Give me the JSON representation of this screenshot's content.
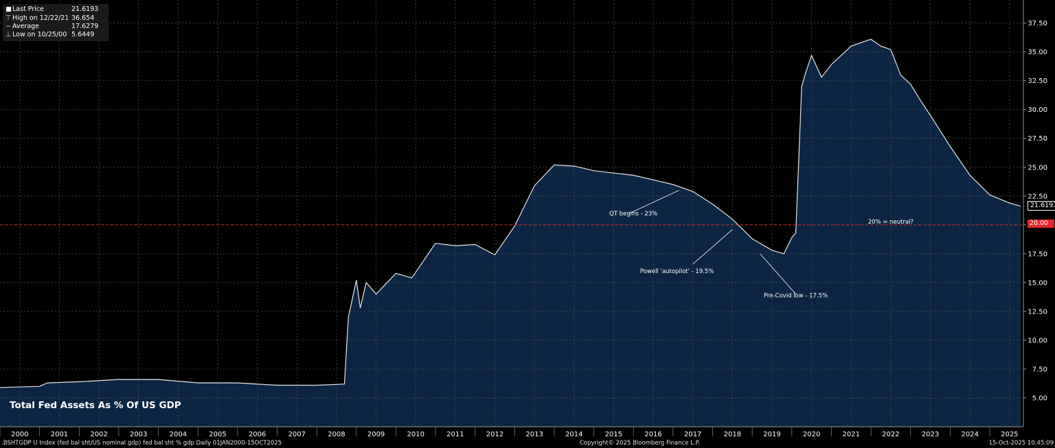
{
  "legend": {
    "last_label": "Last Price",
    "last_value": "21.6193",
    "high_label": "High on 12/22/21",
    "high_value": "36.654",
    "avg_label": "Average",
    "avg_value": "17.6279",
    "low_label": "Low on 10/25/00",
    "low_value": "5.6449"
  },
  "chart_title": "Total Fed Assets As % Of US GDP",
  "footer": {
    "left": ".BSHTGDP U Index (fed bal sht/US nominal gdp) fed bal sht % gdp Daily 01JAN2000-15OCT2025",
    "center": "Copyright© 2025 Bloomberg Finance L.P.",
    "right": "15-Oct-2025 10:45:09"
  },
  "last_price_chip": "21.6193",
  "threshold_chip": "20.00",
  "colors": {
    "area": "#0c2544",
    "line": "#e8e8e8",
    "threshold": "#e0262b",
    "grid": "#555555"
  },
  "chart_data": {
    "type": "area",
    "x": [
      2000.0,
      2001.0,
      2001.2,
      2002.0,
      2003.0,
      2004.0,
      2005.0,
      2006.0,
      2007.0,
      2008.0,
      2008.7,
      2008.8,
      2009.0,
      2009.1,
      2009.25,
      2009.5,
      2010.0,
      2010.4,
      2011.0,
      2011.5,
      2012.0,
      2012.5,
      2013.0,
      2013.5,
      2014.0,
      2014.5,
      2015.0,
      2015.5,
      2016.0,
      2016.5,
      2017.0,
      2017.5,
      2018.0,
      2018.5,
      2019.0,
      2019.5,
      2019.8,
      2020.0,
      2020.1,
      2020.25,
      2020.35,
      2020.5,
      2020.75,
      2021.0,
      2021.5,
      2022.0,
      2022.25,
      2022.5,
      2022.75,
      2023.0,
      2023.25,
      2023.5,
      2024.0,
      2024.5,
      2025.0,
      2025.5,
      2025.78
    ],
    "y": [
      5.9,
      6.0,
      6.3,
      6.4,
      6.6,
      6.6,
      6.3,
      6.3,
      6.1,
      6.1,
      6.2,
      12.0,
      15.2,
      12.8,
      15.0,
      14.0,
      15.8,
      15.4,
      18.4,
      18.2,
      18.3,
      17.4,
      19.9,
      23.4,
      25.2,
      25.1,
      24.7,
      24.5,
      24.3,
      23.9,
      23.5,
      22.9,
      21.8,
      20.5,
      18.8,
      17.8,
      17.5,
      18.9,
      19.3,
      32.0,
      33.2,
      34.7,
      32.8,
      33.9,
      35.5,
      36.1,
      35.5,
      35.2,
      33.0,
      32.2,
      30.8,
      29.5,
      26.8,
      24.3,
      22.6,
      21.9,
      21.6193
    ],
    "xlim": [
      2000,
      2025.85
    ],
    "ylim": [
      2.5,
      39.5
    ],
    "x_ticks": [
      "2000",
      "2001",
      "2002",
      "2003",
      "2004",
      "2005",
      "2006",
      "2007",
      "2008",
      "2009",
      "2010",
      "2011",
      "2012",
      "2013",
      "2014",
      "2015",
      "2016",
      "2017",
      "2018",
      "2019",
      "2020",
      "2021",
      "2022",
      "2023",
      "2024",
      "2025"
    ],
    "y_ticks": [
      5.0,
      7.5,
      10.0,
      12.5,
      15.0,
      17.5,
      20.0,
      22.5,
      25.0,
      27.5,
      30.0,
      32.5,
      35.0,
      37.5
    ],
    "y_tick_labels": [
      "5.00",
      "7.50",
      "10.00",
      "12.50",
      "15.00",
      "17.50",
      "20.00",
      "22.50",
      "25.00",
      "27.50",
      "30.00",
      "32.50",
      "35.00",
      "37.50"
    ],
    "reference_line": 20.0,
    "grid": true,
    "annotations": [
      {
        "text": "QT begins - 23%",
        "x": 2017.15,
        "y": 23.0
      },
      {
        "text": "Powell 'autopilot' - 19.5%",
        "x": 2018.5,
        "y": 19.6
      },
      {
        "text": "Pre-Covid low - 17.5%",
        "x": 2019.2,
        "y": 17.5
      },
      {
        "text": "20% = neutral?",
        "x": 2022.5,
        "y": 20.0
      }
    ]
  }
}
